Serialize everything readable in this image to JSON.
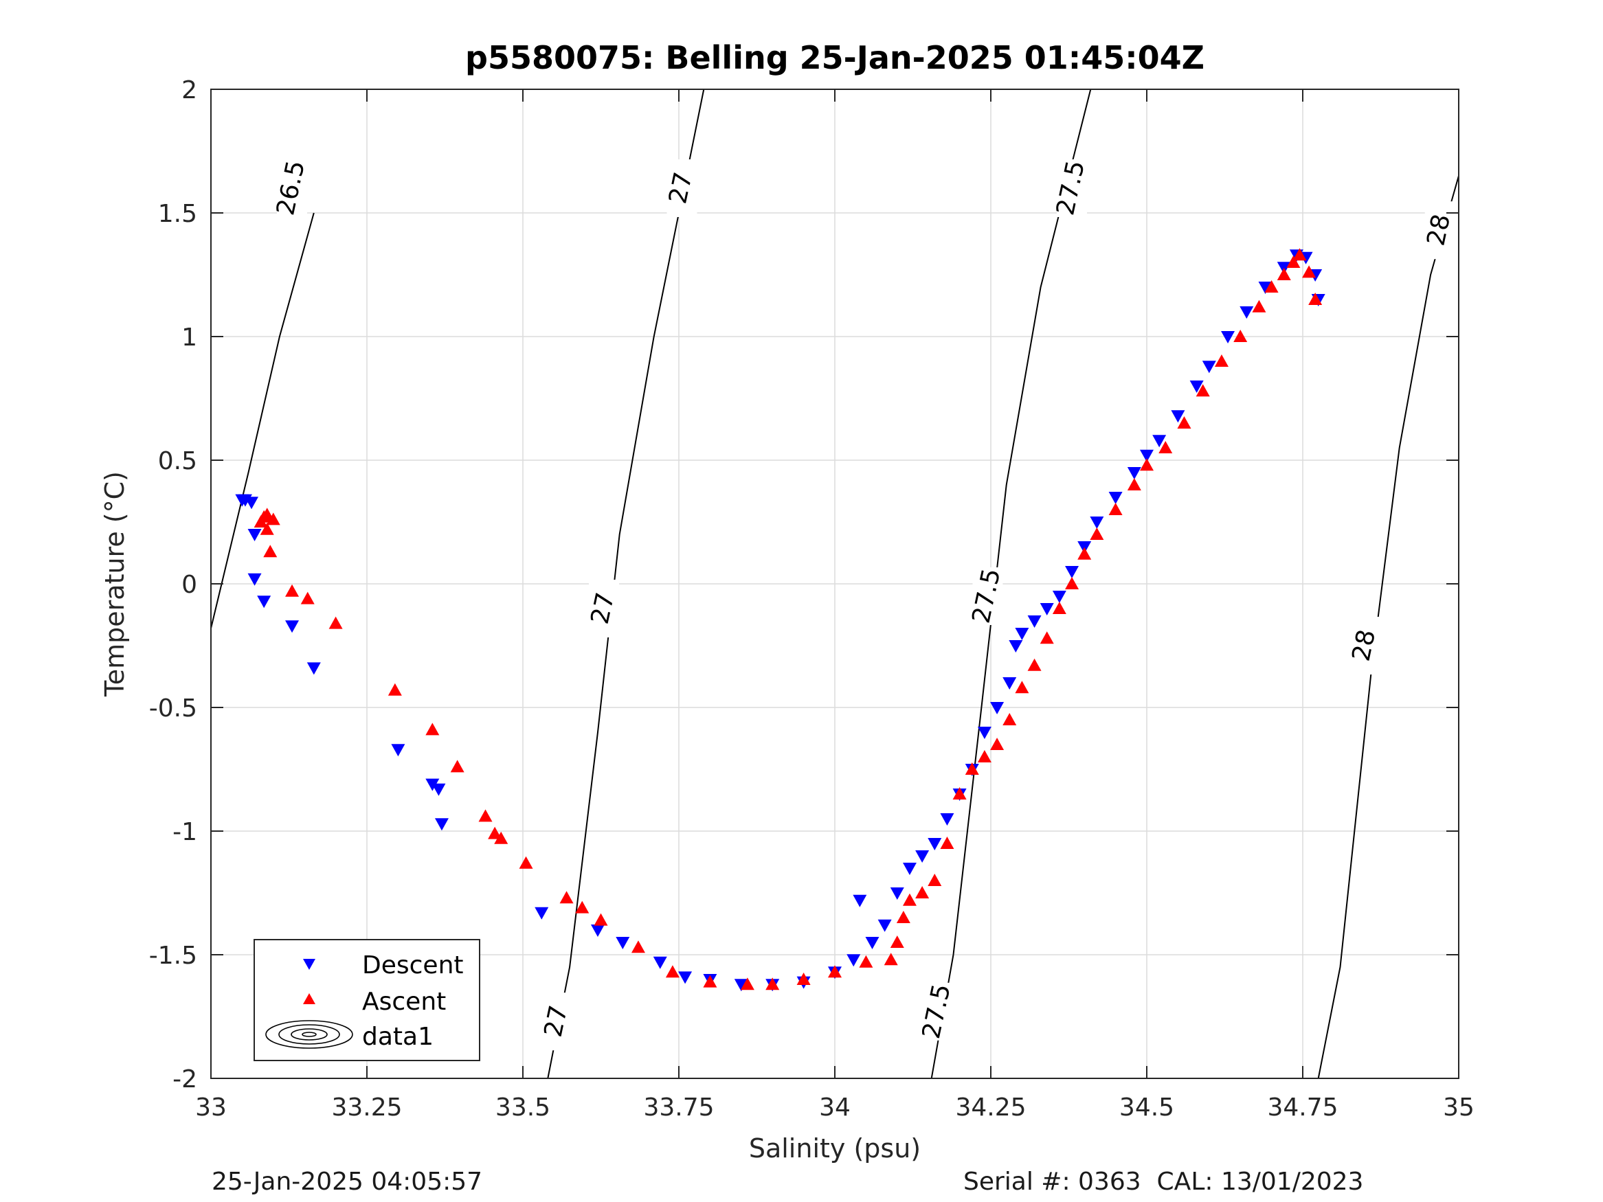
{
  "chart_data": {
    "type": "scatter",
    "title": "p5580075: Belling 25-Jan-2025 01:45:04Z",
    "xlabel": "Salinity (psu)",
    "ylabel": "Temperature (°C)",
    "xlim": [
      33,
      35
    ],
    "ylim": [
      -2,
      2
    ],
    "xticks": [
      33,
      33.25,
      33.5,
      33.75,
      34,
      34.25,
      34.5,
      34.75,
      35
    ],
    "xtick_labels": [
      "33",
      "33.25",
      "33.5",
      "33.75",
      "34",
      "34.25",
      "34.5",
      "34.75",
      "35"
    ],
    "yticks": [
      -2,
      -1.5,
      -1,
      -0.5,
      0,
      0.5,
      1,
      1.5,
      2
    ],
    "ytick_labels": [
      "-2",
      "-1.5",
      "-1",
      "-0.5",
      "0",
      "0.5",
      "1",
      "1.5",
      "2"
    ],
    "grid": true,
    "legend_position": "bottom-left",
    "isopycnals": [
      {
        "label": "26.5",
        "points": [
          [
            33.0,
            -0.18
          ],
          [
            33.06,
            0.45
          ],
          [
            33.11,
            1.0
          ],
          [
            33.165,
            1.5
          ],
          [
            33.165,
            1.5
          ],
          [
            33.165,
            1.5
          ]
        ],
        "label_at": [
          [
            33.13,
            1.6
          ]
        ]
      },
      {
        "label": "27",
        "points": [
          [
            33.54,
            -2.0
          ],
          [
            33.575,
            -1.55
          ],
          [
            33.62,
            -0.6
          ],
          [
            33.655,
            0.2
          ],
          [
            33.71,
            1.0
          ],
          [
            33.79,
            2.0
          ]
        ],
        "label_at": [
          [
            33.555,
            -1.77
          ],
          [
            33.63,
            -0.1
          ],
          [
            33.755,
            1.6
          ]
        ]
      },
      {
        "label": "27.5",
        "points": [
          [
            34.155,
            -2.0
          ],
          [
            34.19,
            -1.5
          ],
          [
            34.235,
            -0.5
          ],
          [
            34.275,
            0.4
          ],
          [
            34.33,
            1.2
          ],
          [
            34.41,
            2.0
          ]
        ],
        "label_at": [
          [
            34.165,
            -1.73
          ],
          [
            34.245,
            -0.05
          ],
          [
            34.38,
            1.6
          ]
        ]
      },
      {
        "label": "28",
        "points": [
          [
            34.775,
            -2.0
          ],
          [
            34.81,
            -1.55
          ],
          [
            34.86,
            -0.35
          ],
          [
            34.905,
            0.55
          ],
          [
            34.955,
            1.25
          ],
          [
            35.0,
            1.65
          ]
        ],
        "label_at": [
          [
            34.85,
            -0.25
          ],
          [
            34.97,
            1.43
          ]
        ]
      }
    ],
    "series": [
      {
        "name": "Descent",
        "marker": "triangle-down",
        "color": "#0000ff",
        "x": [
          33.05,
          33.055,
          33.065,
          33.07,
          33.07,
          33.085,
          33.13,
          33.165,
          33.3,
          33.355,
          33.365,
          33.37,
          33.53,
          33.62,
          33.66,
          33.72,
          33.76,
          33.8,
          33.85,
          33.9,
          33.95,
          34.0,
          34.03,
          34.04,
          34.06,
          34.08,
          34.1,
          34.12,
          34.14,
          34.16,
          34.18,
          34.2,
          34.22,
          34.24,
          34.26,
          34.28,
          34.29,
          34.3,
          34.32,
          34.34,
          34.36,
          34.38,
          34.4,
          34.42,
          34.45,
          34.48,
          34.5,
          34.52,
          34.55,
          34.58,
          34.6,
          34.63,
          34.66,
          34.69,
          34.72,
          34.74,
          34.755,
          34.77,
          34.775
        ],
        "y": [
          0.34,
          0.34,
          0.33,
          0.2,
          0.02,
          -0.07,
          -0.17,
          -0.34,
          -0.67,
          -0.81,
          -0.83,
          -0.97,
          -1.33,
          -1.4,
          -1.45,
          -1.53,
          -1.59,
          -1.6,
          -1.62,
          -1.62,
          -1.61,
          -1.57,
          -1.52,
          -1.28,
          -1.45,
          -1.38,
          -1.25,
          -1.15,
          -1.1,
          -1.05,
          -0.95,
          -0.85,
          -0.75,
          -0.6,
          -0.5,
          -0.4,
          -0.25,
          -0.2,
          -0.15,
          -0.1,
          -0.05,
          0.05,
          0.15,
          0.25,
          0.35,
          0.45,
          0.52,
          0.58,
          0.68,
          0.8,
          0.88,
          1.0,
          1.1,
          1.2,
          1.28,
          1.33,
          1.32,
          1.25,
          1.15
        ]
      },
      {
        "name": "Ascent",
        "marker": "triangle-up",
        "color": "#ff0000",
        "x": [
          33.08,
          33.085,
          33.09,
          33.09,
          33.095,
          33.1,
          33.13,
          33.155,
          33.2,
          33.295,
          33.355,
          33.395,
          33.44,
          33.455,
          33.465,
          33.505,
          33.57,
          33.595,
          33.625,
          33.685,
          33.74,
          33.8,
          33.86,
          33.9,
          33.95,
          34.0,
          34.05,
          34.09,
          34.1,
          34.11,
          34.12,
          34.14,
          34.16,
          34.18,
          34.2,
          34.22,
          34.24,
          34.26,
          34.28,
          34.3,
          34.32,
          34.34,
          34.36,
          34.38,
          34.4,
          34.42,
          34.45,
          34.48,
          34.5,
          34.53,
          34.56,
          34.59,
          34.62,
          34.65,
          34.68,
          34.7,
          34.72,
          34.735,
          34.745,
          34.76,
          34.77
        ],
        "y": [
          0.25,
          0.27,
          0.28,
          0.22,
          0.13,
          0.26,
          -0.03,
          -0.06,
          -0.16,
          -0.43,
          -0.59,
          -0.74,
          -0.94,
          -1.01,
          -1.03,
          -1.13,
          -1.27,
          -1.31,
          -1.36,
          -1.47,
          -1.57,
          -1.61,
          -1.62,
          -1.62,
          -1.6,
          -1.57,
          -1.53,
          -1.52,
          -1.45,
          -1.35,
          -1.28,
          -1.25,
          -1.2,
          -1.05,
          -0.85,
          -0.75,
          -0.7,
          -0.65,
          -0.55,
          -0.42,
          -0.33,
          -0.22,
          -0.1,
          0.0,
          0.12,
          0.2,
          0.3,
          0.4,
          0.48,
          0.55,
          0.65,
          0.78,
          0.9,
          1.0,
          1.12,
          1.2,
          1.25,
          1.3,
          1.33,
          1.26,
          1.15
        ]
      }
    ],
    "legend": {
      "descent": "Descent",
      "ascent": "Ascent",
      "data1": "data1"
    }
  },
  "footer": {
    "timestamp": "25-Jan-2025 04:05:57",
    "serial": "Serial #: 0363  CAL: 13/01/2023"
  },
  "colors": {
    "descent": "#0000ff",
    "ascent": "#ff0000",
    "grid": "#dcdcdc",
    "axis": "#262626",
    "contour": "#000000"
  }
}
